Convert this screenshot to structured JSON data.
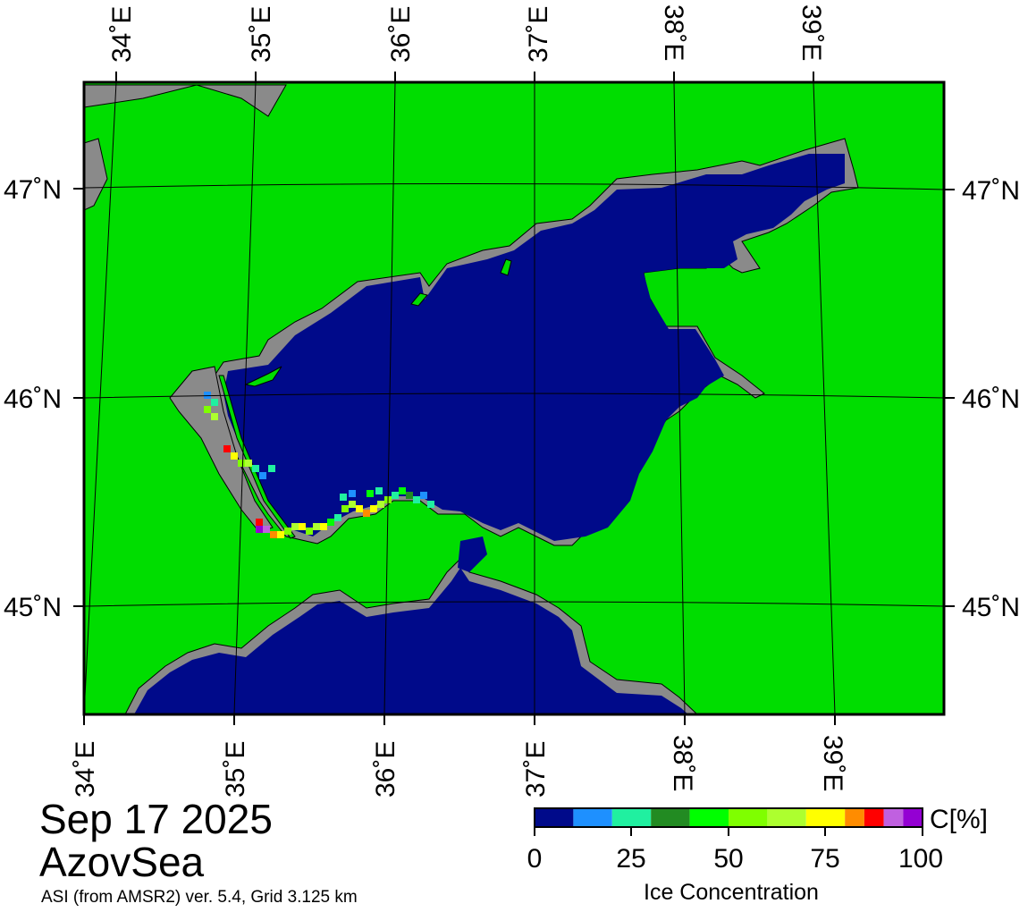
{
  "date": "Sep 17 2025",
  "region": "AzovSea",
  "source": "ASI (from AMSR2) ver. 5.4,  Grid 3.125 km",
  "lon_labels": [
    "34˚E",
    "35˚E",
    "36˚E",
    "37˚E",
    "38˚E",
    "39˚E"
  ],
  "lat_labels": [
    "47˚N",
    "46˚N",
    "45˚N"
  ],
  "colors": {
    "land": "#00dd00",
    "open_water": "#000a8a",
    "coast_mask": "#8a8a8a",
    "graticule": "#000000"
  },
  "colorbar": {
    "unit": "C[%]",
    "title": "Ice Concentration",
    "ticks": [
      "0",
      "25",
      "50",
      "75",
      "100"
    ],
    "classes": [
      {
        "from": 0,
        "to": 10,
        "color": "#000a8a"
      },
      {
        "from": 10,
        "to": 20,
        "color": "#1e90ff"
      },
      {
        "from": 20,
        "to": 30,
        "color": "#20f0a0"
      },
      {
        "from": 30,
        "to": 40,
        "color": "#228b22"
      },
      {
        "from": 40,
        "to": 50,
        "color": "#00ff00"
      },
      {
        "from": 50,
        "to": 60,
        "color": "#7fff00"
      },
      {
        "from": 60,
        "to": 70,
        "color": "#adff2f"
      },
      {
        "from": 70,
        "to": 80,
        "color": "#ffff00"
      },
      {
        "from": 80,
        "to": 85,
        "color": "#ff8c00"
      },
      {
        "from": 85,
        "to": 90,
        "color": "#ff0000"
      },
      {
        "from": 90,
        "to": 95,
        "color": "#c060e0"
      },
      {
        "from": 95,
        "to": 100,
        "color": "#9400d3"
      }
    ]
  }
}
